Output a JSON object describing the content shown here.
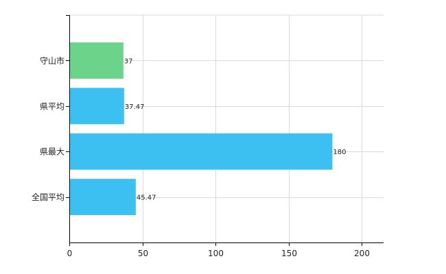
{
  "chart_data": {
    "type": "bar",
    "orientation": "horizontal",
    "title": "",
    "xlabel": "",
    "ylabel": "",
    "categories": [
      "守山市",
      "県平均",
      "県最大",
      "全国平均"
    ],
    "values": [
      37,
      37.47,
      180,
      45.47
    ],
    "data_labels": [
      "37",
      "37.47",
      "180",
      "45.47"
    ],
    "xlim": [
      0,
      215
    ],
    "x_ticks": [
      0,
      50,
      100,
      150,
      200
    ],
    "x_tick_labels": [
      "0",
      "50",
      "100",
      "150",
      "200"
    ],
    "grid": true,
    "legend": "none",
    "colors": {
      "highlight": "#6cd38a",
      "default": "#3cc0f2",
      "grid": "#d9d9d9",
      "axis": "#000000"
    },
    "highlight_index": 0
  }
}
